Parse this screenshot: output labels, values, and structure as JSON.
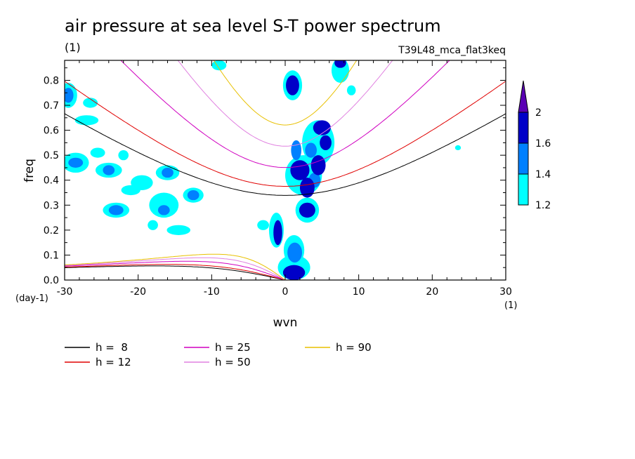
{
  "chart_data": {
    "type": "contour",
    "title": "air pressure at sea level S-T power spectrum",
    "title_units": "(1)",
    "subtitle": "T39L48_mca_flat3keq",
    "xlabel": "wvn",
    "xunits": "(1)",
    "ylabel": "freq",
    "yunits": "(day-1)",
    "xlim": [
      -30,
      30
    ],
    "ylim": [
      0.0,
      0.88
    ],
    "xticks": [
      -30,
      -20,
      -10,
      0,
      10,
      20,
      30
    ],
    "xtick_labels": [
      "-30",
      "-20",
      "-10",
      "0",
      "10",
      "20",
      "30"
    ],
    "yticks": [
      0.0,
      0.1,
      0.2,
      0.3,
      0.4,
      0.5,
      0.6,
      0.7,
      0.8
    ],
    "ytick_labels": [
      "0.0",
      "0.1",
      "0.2",
      "0.3",
      "0.4",
      "0.5",
      "0.6",
      "0.7",
      "0.8"
    ],
    "colorbar": {
      "levels": [
        1.2,
        1.4,
        1.6,
        2
      ],
      "level_labels": [
        "1.2",
        "1.4",
        "1.6",
        "2"
      ],
      "colors": [
        "#00ffff",
        "#0080ff",
        "#0000c8",
        "#5a00b4"
      ]
    },
    "series": [
      {
        "name": "h =  8",
        "h": 8,
        "color": "#000000"
      },
      {
        "name": "h = 12",
        "h": 12,
        "color": "#e00000"
      },
      {
        "name": "h = 25",
        "h": 25,
        "color": "#d000c0"
      },
      {
        "name": "h = 50",
        "h": 50,
        "color": "#e080e0"
      },
      {
        "name": "h = 90",
        "h": 90,
        "color": "#e8c000"
      }
    ],
    "blobs": [
      {
        "x": 1.0,
        "y": 0.78,
        "rx": 0.9,
        "ry": 0.04,
        "level": 3
      },
      {
        "x": 1.2,
        "y": 0.03,
        "rx": 1.5,
        "ry": 0.03,
        "level": 3
      },
      {
        "x": -1.0,
        "y": 0.19,
        "rx": 0.6,
        "ry": 0.05,
        "level": 3
      },
      {
        "x": 2.0,
        "y": 0.44,
        "rx": 1.3,
        "ry": 0.04,
        "level": 3
      },
      {
        "x": 3.0,
        "y": 0.37,
        "rx": 1.0,
        "ry": 0.04,
        "level": 3
      },
      {
        "x": 4.5,
        "y": 0.46,
        "rx": 1.0,
        "ry": 0.04,
        "level": 3
      },
      {
        "x": 5.0,
        "y": 0.61,
        "rx": 1.2,
        "ry": 0.03,
        "level": 3
      },
      {
        "x": 5.5,
        "y": 0.55,
        "rx": 0.8,
        "ry": 0.03,
        "level": 3
      },
      {
        "x": 3.0,
        "y": 0.28,
        "rx": 1.1,
        "ry": 0.03,
        "level": 3
      },
      {
        "x": 7.5,
        "y": 0.87,
        "rx": 0.8,
        "ry": 0.02,
        "level": 3
      },
      {
        "x": 1.5,
        "y": 0.52,
        "rx": 0.7,
        "ry": 0.04,
        "level": 2
      },
      {
        "x": 1.3,
        "y": 0.11,
        "rx": 1.0,
        "ry": 0.04,
        "level": 2
      },
      {
        "x": 3.5,
        "y": 0.52,
        "rx": 0.8,
        "ry": 0.03,
        "level": 2
      },
      {
        "x": 4.0,
        "y": 0.4,
        "rx": 0.8,
        "ry": 0.03,
        "level": 2
      },
      {
        "x": -23.0,
        "y": 0.28,
        "rx": 1.0,
        "ry": 0.02,
        "level": 2
      },
      {
        "x": -16.5,
        "y": 0.28,
        "rx": 0.8,
        "ry": 0.02,
        "level": 2
      },
      {
        "x": -16.0,
        "y": 0.43,
        "rx": 0.8,
        "ry": 0.02,
        "level": 2
      },
      {
        "x": -24.0,
        "y": 0.44,
        "rx": 0.8,
        "ry": 0.02,
        "level": 2
      },
      {
        "x": -28.5,
        "y": 0.47,
        "rx": 1.0,
        "ry": 0.02,
        "level": 2
      },
      {
        "x": -29.5,
        "y": 0.74,
        "rx": 0.7,
        "ry": 0.03,
        "level": 2
      },
      {
        "x": -12.5,
        "y": 0.34,
        "rx": 0.8,
        "ry": 0.02,
        "level": 2
      },
      {
        "x": 1.0,
        "y": 0.78,
        "rx": 1.3,
        "ry": 0.06,
        "level": 1
      },
      {
        "x": 1.2,
        "y": 0.05,
        "rx": 2.2,
        "ry": 0.05,
        "level": 1
      },
      {
        "x": -1.2,
        "y": 0.2,
        "rx": 1.0,
        "ry": 0.07,
        "level": 1
      },
      {
        "x": 2.5,
        "y": 0.42,
        "rx": 2.5,
        "ry": 0.08,
        "level": 1
      },
      {
        "x": 4.5,
        "y": 0.55,
        "rx": 2.2,
        "ry": 0.09,
        "level": 1
      },
      {
        "x": 3.0,
        "y": 0.28,
        "rx": 1.6,
        "ry": 0.05,
        "level": 1
      },
      {
        "x": 1.2,
        "y": 0.12,
        "rx": 1.4,
        "ry": 0.06,
        "level": 1
      },
      {
        "x": 7.5,
        "y": 0.84,
        "rx": 1.2,
        "ry": 0.05,
        "level": 1
      },
      {
        "x": -24.0,
        "y": 0.44,
        "rx": 1.8,
        "ry": 0.03,
        "level": 1
      },
      {
        "x": -23.0,
        "y": 0.28,
        "rx": 1.8,
        "ry": 0.03,
        "level": 1
      },
      {
        "x": -16.5,
        "y": 0.3,
        "rx": 2.0,
        "ry": 0.05,
        "level": 1
      },
      {
        "x": -16.0,
        "y": 0.43,
        "rx": 1.6,
        "ry": 0.03,
        "level": 1
      },
      {
        "x": -12.5,
        "y": 0.34,
        "rx": 1.4,
        "ry": 0.03,
        "level": 1
      },
      {
        "x": -28.5,
        "y": 0.47,
        "rx": 1.8,
        "ry": 0.04,
        "level": 1
      },
      {
        "x": -29.5,
        "y": 0.74,
        "rx": 1.2,
        "ry": 0.05,
        "level": 1
      },
      {
        "x": -27.0,
        "y": 0.64,
        "rx": 1.6,
        "ry": 0.02,
        "level": 1
      },
      {
        "x": -19.5,
        "y": 0.39,
        "rx": 1.5,
        "ry": 0.03,
        "level": 1
      },
      {
        "x": -21.0,
        "y": 0.36,
        "rx": 1.3,
        "ry": 0.02,
        "level": 1
      },
      {
        "x": -14.5,
        "y": 0.2,
        "rx": 1.6,
        "ry": 0.02,
        "level": 1
      },
      {
        "x": -25.5,
        "y": 0.51,
        "rx": 1.0,
        "ry": 0.02,
        "level": 1
      },
      {
        "x": -26.5,
        "y": 0.71,
        "rx": 1.0,
        "ry": 0.02,
        "level": 1
      },
      {
        "x": -9.0,
        "y": 0.86,
        "rx": 1.0,
        "ry": 0.02,
        "level": 1
      },
      {
        "x": -22.0,
        "y": 0.5,
        "rx": 0.7,
        "ry": 0.02,
        "level": 1
      },
      {
        "x": -18.0,
        "y": 0.22,
        "rx": 0.7,
        "ry": 0.02,
        "level": 1
      },
      {
        "x": -3.0,
        "y": 0.22,
        "rx": 0.8,
        "ry": 0.02,
        "level": 1
      },
      {
        "x": 9.0,
        "y": 0.76,
        "rx": 0.6,
        "ry": 0.02,
        "level": 1
      },
      {
        "x": 23.5,
        "y": 0.53,
        "rx": 0.4,
        "ry": 0.01,
        "level": 1
      }
    ]
  }
}
